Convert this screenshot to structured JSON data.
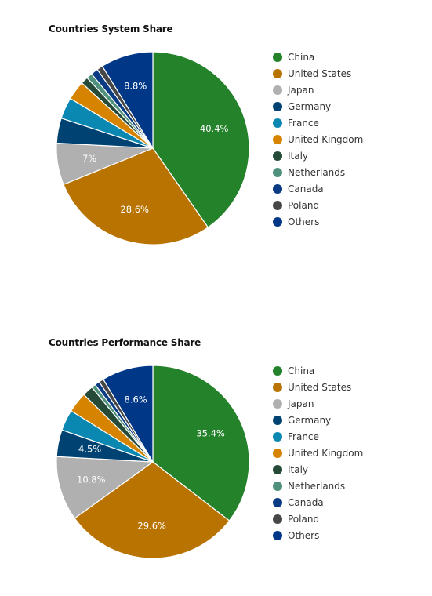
{
  "chart_data": [
    {
      "type": "pie",
      "title": "Countries System Share",
      "categories": [
        "China",
        "United States",
        "Japan",
        "Germany",
        "France",
        "United Kingdom",
        "Italy",
        "Netherlands",
        "Canada",
        "Poland",
        "Others"
      ],
      "values": [
        40.4,
        28.6,
        7.0,
        4.2,
        3.6,
        3.2,
        1.2,
        1.0,
        1.2,
        1.0,
        8.8
      ],
      "labels": [
        "40.4%",
        "28.6%",
        "7%",
        "",
        "",
        "",
        "",
        "",
        "",
        "",
        "8.8%"
      ],
      "colors": [
        "#23822a",
        "#b97300",
        "#b0b0b0",
        "#004271",
        "#0a88b1",
        "#d68400",
        "#254b38",
        "#4f917c",
        "#0a3b84",
        "#474747",
        "#003787"
      ],
      "legend_position": "right"
    },
    {
      "type": "pie",
      "title": "Countries Performance Share",
      "categories": [
        "China",
        "United States",
        "Japan",
        "Germany",
        "France",
        "United Kingdom",
        "Italy",
        "Netherlands",
        "Canada",
        "Poland",
        "Others"
      ],
      "values": [
        35.4,
        29.6,
        10.8,
        4.5,
        3.5,
        3.4,
        1.8,
        0.7,
        0.8,
        0.8,
        8.6
      ],
      "labels": [
        "35.4%",
        "29.6%",
        "10.8%",
        "4.5%",
        "",
        "",
        "",
        "",
        "",
        "",
        "8.6%"
      ],
      "colors": [
        "#23822a",
        "#b97300",
        "#b0b0b0",
        "#004271",
        "#0a88b1",
        "#d68400",
        "#254b38",
        "#4f917c",
        "#0a3b84",
        "#474747",
        "#003787"
      ],
      "legend_position": "right"
    }
  ]
}
